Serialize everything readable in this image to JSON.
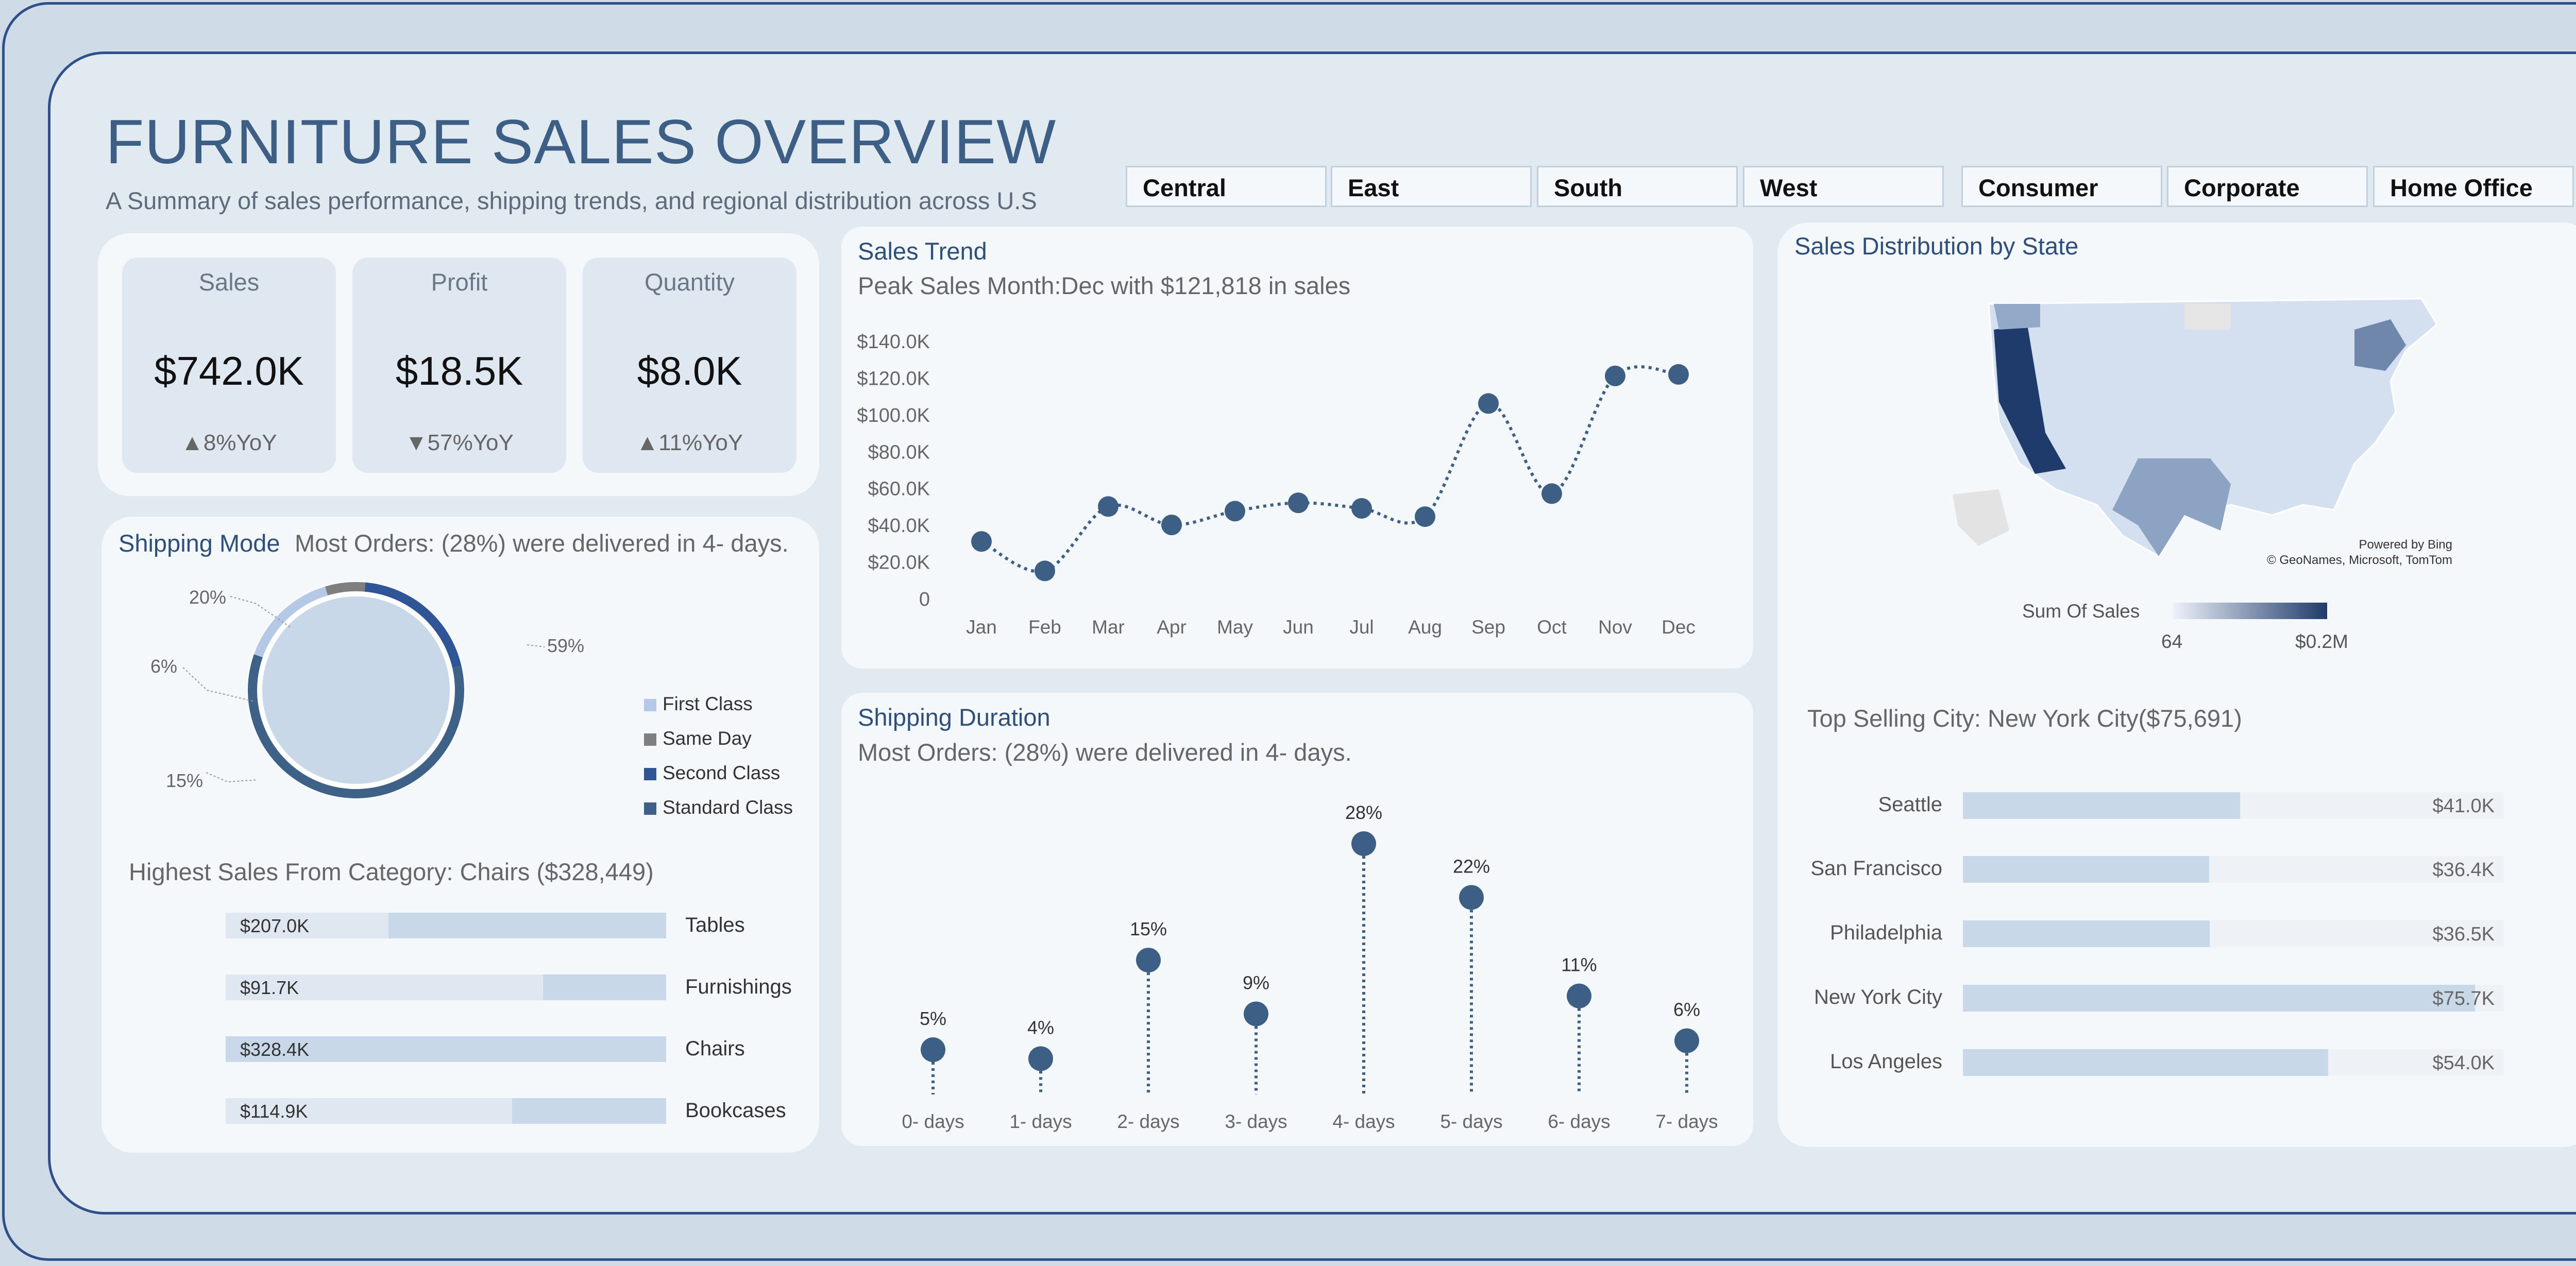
{
  "header": {
    "title": "FURNITURE SALES OVERVIEW",
    "subtitle": "A Summary of sales performance, shipping trends, and regional distribution across U.S"
  },
  "slicers": {
    "region": [
      "Central",
      "East",
      "South",
      "West"
    ],
    "segment": [
      "Consumer",
      "Corporate",
      "Home Office"
    ]
  },
  "kpis": [
    {
      "label": "Sales",
      "value": "$742.0K",
      "delta": "▲8%YoY"
    },
    {
      "label": "Profit",
      "value": "$18.5K",
      "delta": "▼57%YoY"
    },
    {
      "label": "Quantity",
      "value": "$8.0K",
      "delta": "▲11%YoY"
    }
  ],
  "shipping_mode": {
    "title": "Shipping Mode",
    "note": "Most Orders: (28%) were delivered in 4- days.",
    "slice_labels": [
      "59%",
      "15%",
      "6%",
      "20%"
    ],
    "legend": [
      "First Class",
      "Same Day",
      "Second Class",
      "Standard Class"
    ]
  },
  "category": {
    "note": "Highest Sales From Category: Chairs ($328,449)",
    "items": [
      {
        "name": "Tables",
        "value_label": "$207.0K"
      },
      {
        "name": "Furnishings",
        "value_label": "$91.7K"
      },
      {
        "name": "Chairs",
        "value_label": "$328.4K"
      },
      {
        "name": "Bookcases",
        "value_label": "$114.9K"
      }
    ]
  },
  "sales_trend": {
    "title": "Sales Trend",
    "note": "Peak Sales Month:Dec with $121,818 in sales"
  },
  "shipping_duration": {
    "title": "Shipping Duration",
    "note": "Most Orders: (28%) were delivered in 4- days."
  },
  "map": {
    "title": "Sales Distribution by State",
    "credit_line1": "Powered by Bing",
    "credit_line2": "© GeoNames, Microsoft, TomTom",
    "legend_title": "Sum Of Sales",
    "legend_min": "64",
    "legend_max": "$0.2M"
  },
  "cities": {
    "note": "Top Selling City: New York City($75,691)",
    "items": [
      {
        "name": "Seattle",
        "value_label": "$41.0K"
      },
      {
        "name": "San Francisco",
        "value_label": "$36.4K"
      },
      {
        "name": "Philadelphia",
        "value_label": "$36.5K"
      },
      {
        "name": "New York City",
        "value_label": "$75.7K"
      },
      {
        "name": "Los Angeles",
        "value_label": "$54.0K"
      }
    ]
  },
  "chart_data": [
    {
      "type": "line",
      "categories": [
        "Jan",
        "Feb",
        "Mar",
        "Apr",
        "May",
        "Jun",
        "Jul",
        "Aug",
        "Sep",
        "Oct",
        "Nov",
        "Dec"
      ],
      "values": [
        31000,
        15000,
        50000,
        40000,
        47500,
        52000,
        49000,
        44500,
        106000,
        57000,
        121000,
        121818
      ],
      "ylim": [
        0,
        140000
      ],
      "yticks": [
        "0",
        "$20.0K",
        "$40.0K",
        "$60.0K",
        "$80.0K",
        "$100.0K",
        "$120.0K",
        "$140.0K"
      ],
      "color": "#3d5f85"
    },
    {
      "type": "scatter",
      "categories": [
        "0- days",
        "1- days",
        "2- days",
        "3- days",
        "4- days",
        "5- days",
        "6- days",
        "7- days"
      ],
      "values": [
        5,
        4,
        15,
        9,
        28,
        22,
        11,
        6
      ],
      "data_labels": [
        "5%",
        "4%",
        "15%",
        "9%",
        "28%",
        "22%",
        "11%",
        "6%"
      ],
      "color": "#3d5f85"
    },
    {
      "type": "pie",
      "labels": [
        "Standard Class",
        "First Class",
        "Same Day",
        "Second Class"
      ],
      "values": [
        59,
        15,
        6,
        20
      ],
      "colors": [
        "#3e6187",
        "#b4c9e6",
        "#7f7f7f",
        "#2f5597"
      ]
    },
    {
      "type": "bar",
      "categories": [
        "Tables",
        "Furnishings",
        "Chairs",
        "Bookcases"
      ],
      "values": [
        207.0,
        91.7,
        328.4,
        114.9
      ],
      "unit": "K"
    },
    {
      "type": "bar",
      "categories": [
        "Seattle",
        "San Francisco",
        "Philadelphia",
        "New York City",
        "Los Angeles"
      ],
      "values": [
        41.0,
        36.4,
        36.5,
        75.7,
        54.0
      ],
      "unit": "K"
    }
  ]
}
